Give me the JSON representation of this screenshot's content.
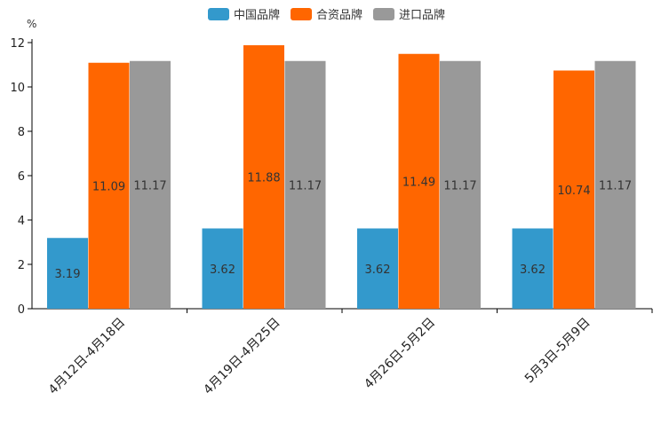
{
  "chart_data": {
    "type": "bar",
    "title": "",
    "unit_label": "%",
    "xlabel": "",
    "ylabel": "%",
    "ylim": [
      0,
      12
    ],
    "yticks": [
      0,
      2,
      4,
      6,
      8,
      10,
      12
    ],
    "categories": [
      "4月12日-4月18日",
      "4月19日-4月25日",
      "4月26日-5月2日",
      "5月3日-5月9日"
    ],
    "series": [
      {
        "name": "中国品牌",
        "color": "#3399cc",
        "values": [
          3.19,
          3.62,
          3.62,
          3.62
        ]
      },
      {
        "name": "合资品牌",
        "color": "#ff6600",
        "values": [
          11.09,
          11.88,
          11.49,
          10.74
        ]
      },
      {
        "name": "进口品牌",
        "color": "#999999",
        "values": [
          11.17,
          11.17,
          11.17,
          11.17
        ]
      }
    ],
    "data_labels": [
      [
        "3.19",
        "3.62",
        "3.62",
        "3.62"
      ],
      [
        "11.09",
        "11.88",
        "11.49",
        "10.74"
      ],
      [
        "11.17",
        "11.17",
        "11.17",
        "11.17"
      ]
    ],
    "legend_position": "top-center",
    "grid": false
  }
}
